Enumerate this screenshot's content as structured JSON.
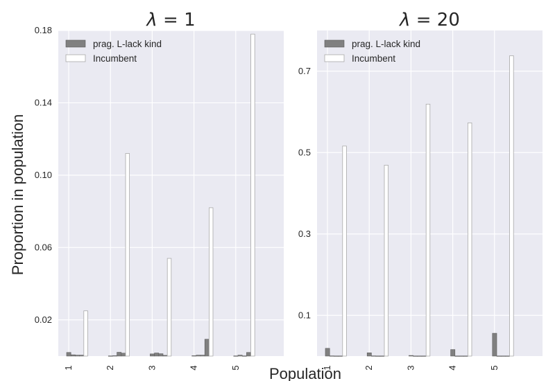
{
  "chart_data": {
    "ylabel": "Proportion in population",
    "xlabel": "Population",
    "legend_placement": "top-left",
    "grid": true,
    "colors": {
      "kind": "#808080",
      "incumbent": "#ffffff",
      "background": "#eaeaf2"
    },
    "panels": [
      {
        "type": "bar",
        "title_symbol": "λ",
        "title_value": " = 1",
        "categories": [
          "1",
          "2",
          "3",
          "4",
          "5"
        ],
        "ylim": [
          0,
          0.18
        ],
        "yticks": [
          0.02,
          0.06,
          0.1,
          0.14,
          0.18
        ],
        "ytick_labels": [
          "0.02",
          "0.06",
          "0.10",
          "0.14",
          "0.18"
        ],
        "series": [
          {
            "name": "prag. L-lack kind",
            "values": [
              [
                0.002,
                0.0007,
                0.0005,
                0.0005
              ],
              [
                0.0001,
                0.0002,
                0.0021,
                0.0016
              ],
              [
                0.0012,
                0.0017,
                0.0013,
                0.0004
              ],
              [
                0.0002,
                0.0005,
                0.0005,
                0.0093
              ],
              [
                0.0001,
                0.0005,
                0.0001,
                0.002
              ]
            ]
          },
          {
            "name": "Incumbent",
            "values": [
              0.025,
              0.112,
              0.054,
              0.082,
              0.178
            ]
          }
        ]
      },
      {
        "type": "bar",
        "title_symbol": "λ",
        "title_value": " = 20",
        "categories": [
          "1",
          "2",
          "3",
          "4",
          "5"
        ],
        "ylim": [
          0,
          0.8
        ],
        "yticks": [
          0.1,
          0.3,
          0.5,
          0.7
        ],
        "ytick_labels": [
          "0.1",
          "0.3",
          "0.5",
          "0.7"
        ],
        "series": [
          {
            "name": "prag. L-lack kind",
            "values": [
              [
                0.019,
                0.0005,
                0.0003,
                0.0003
              ],
              [
                0.008,
                0.0005,
                0.0003,
                0.0003
              ],
              [
                0.0015,
                0.0003,
                0.0003,
                0.0003
              ],
              [
                0.016,
                0.0003,
                0.0003,
                0.0003
              ],
              [
                0.056,
                0.0003,
                0.0003,
                0.0003
              ]
            ]
          },
          {
            "name": "Incumbent",
            "values": [
              0.516,
              0.469,
              0.619,
              0.573,
              0.738
            ]
          }
        ]
      }
    ]
  }
}
